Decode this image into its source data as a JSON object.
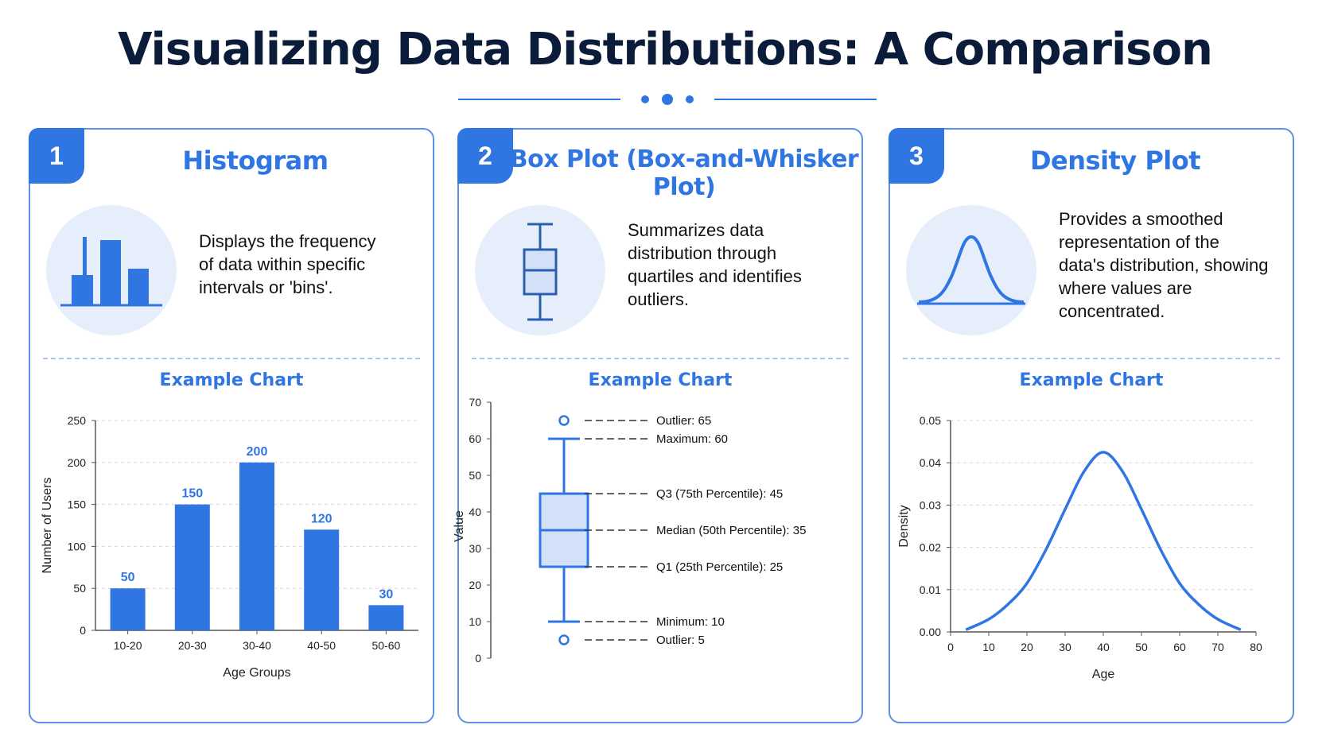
{
  "page": {
    "title": "Visualizing Data Distributions: A Comparison"
  },
  "colors": {
    "accent": "#2f76e3",
    "dark": "#0b1b3a",
    "light": "#e6eefb",
    "box_fill": "#d3e1f8"
  },
  "cards": [
    {
      "number": "1",
      "title": "Histogram",
      "icon": "histogram-icon",
      "description_lines": [
        "Displays the frequency",
        "of data within specific",
        "intervals or 'bins'."
      ],
      "example_label": "Example Chart"
    },
    {
      "number": "2",
      "title": "Box Plot (Box-and-Whisker Plot)",
      "icon": "box-plot-icon",
      "description_lines": [
        "Summarizes data",
        "distribution through",
        "quartiles and identifies",
        "outliers."
      ],
      "example_label": "Example Chart"
    },
    {
      "number": "3",
      "title": "Density Plot",
      "icon": "bell-curve-icon",
      "description_lines": [
        "Provides a smoothed",
        "representation of the",
        "data's distribution, showing",
        "where values are",
        "concentrated."
      ],
      "example_label": "Example Chart"
    }
  ],
  "chart_data": [
    {
      "type": "bar",
      "categories": [
        "10-20",
        "20-30",
        "30-40",
        "40-50",
        "50-60"
      ],
      "values": [
        50,
        150,
        200,
        120,
        30
      ],
      "data_labels": [
        "50",
        "150",
        "200",
        "120",
        "30"
      ],
      "xlabel": "Age Groups",
      "ylabel": "Number of Users",
      "ylim": [
        0,
        250
      ],
      "yticks": [
        "0",
        "50",
        "100",
        "150",
        "200",
        "250"
      ],
      "grid": true
    },
    {
      "type": "box",
      "ylabel": "Value",
      "ylim": [
        0,
        70
      ],
      "yticks": [
        "0",
        "10",
        "20",
        "30",
        "40",
        "50",
        "60",
        "70"
      ],
      "min": 10,
      "q1": 25,
      "median": 35,
      "q3": 45,
      "max": 60,
      "outliers": [
        65,
        5
      ],
      "annotations": [
        {
          "text": "Outlier: 65",
          "value": 65
        },
        {
          "text": "Maximum: 60",
          "value": 60
        },
        {
          "text": "Q3 (75th Percentile): 45",
          "value": 45
        },
        {
          "text": "Median (50th Percentile): 35",
          "value": 35
        },
        {
          "text": "Q1 (25th Percentile): 25",
          "value": 25
        },
        {
          "text": "Minimum: 10",
          "value": 10
        },
        {
          "text": "Outlier: 5",
          "value": 5
        }
      ]
    },
    {
      "type": "line",
      "xlabel": "Age",
      "ylabel": "Density",
      "xlim": [
        0,
        80
      ],
      "ylim": [
        0,
        0.05
      ],
      "xticks": [
        "0",
        "10",
        "20",
        "30",
        "40",
        "50",
        "60",
        "70",
        "80"
      ],
      "yticks": [
        "0.00",
        "0.01",
        "0.02",
        "0.03",
        "0.04",
        "0.05"
      ],
      "x": [
        4,
        10,
        15,
        20,
        25,
        30,
        35,
        40,
        45,
        50,
        55,
        60,
        65,
        70,
        76
      ],
      "y": [
        0.0005,
        0.003,
        0.0065,
        0.0115,
        0.0195,
        0.029,
        0.038,
        0.0425,
        0.038,
        0.029,
        0.0195,
        0.0115,
        0.0065,
        0.003,
        0.0005
      ],
      "grid": true
    }
  ]
}
